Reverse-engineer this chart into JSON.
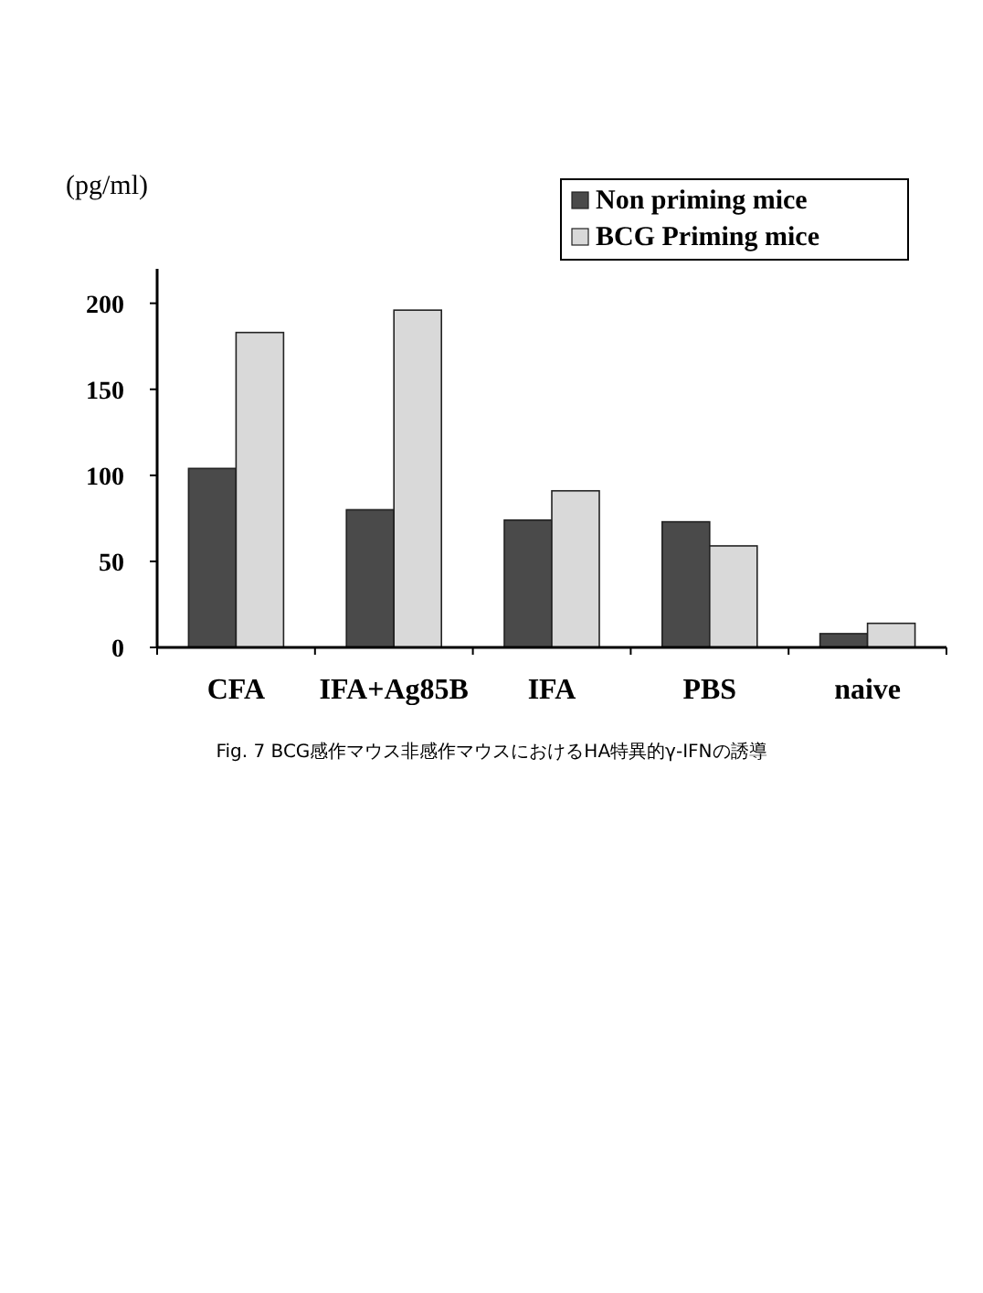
{
  "chart_data": {
    "type": "bar",
    "ylabel": "(pg/ml)",
    "categories": [
      "CFA",
      "IFA+Ag85B",
      "IFA",
      "PBS",
      "naive"
    ],
    "series": [
      {
        "name": "Non priming mice",
        "color": "#4a4a4a",
        "values": [
          104,
          80,
          74,
          73,
          8
        ]
      },
      {
        "name": "BCG Priming mice",
        "color": "#d9d9d9",
        "values": [
          183,
          196,
          91,
          59,
          14
        ]
      }
    ],
    "ylim": [
      0,
      220
    ],
    "yticks": [
      0,
      50,
      100,
      150,
      200
    ],
    "grid": false,
    "legend": "top right",
    "annotations": [
      "Fig. 7  BCG感作マウス非感作マウスにおけるHA特異的γ-IFNの誘導"
    ]
  }
}
